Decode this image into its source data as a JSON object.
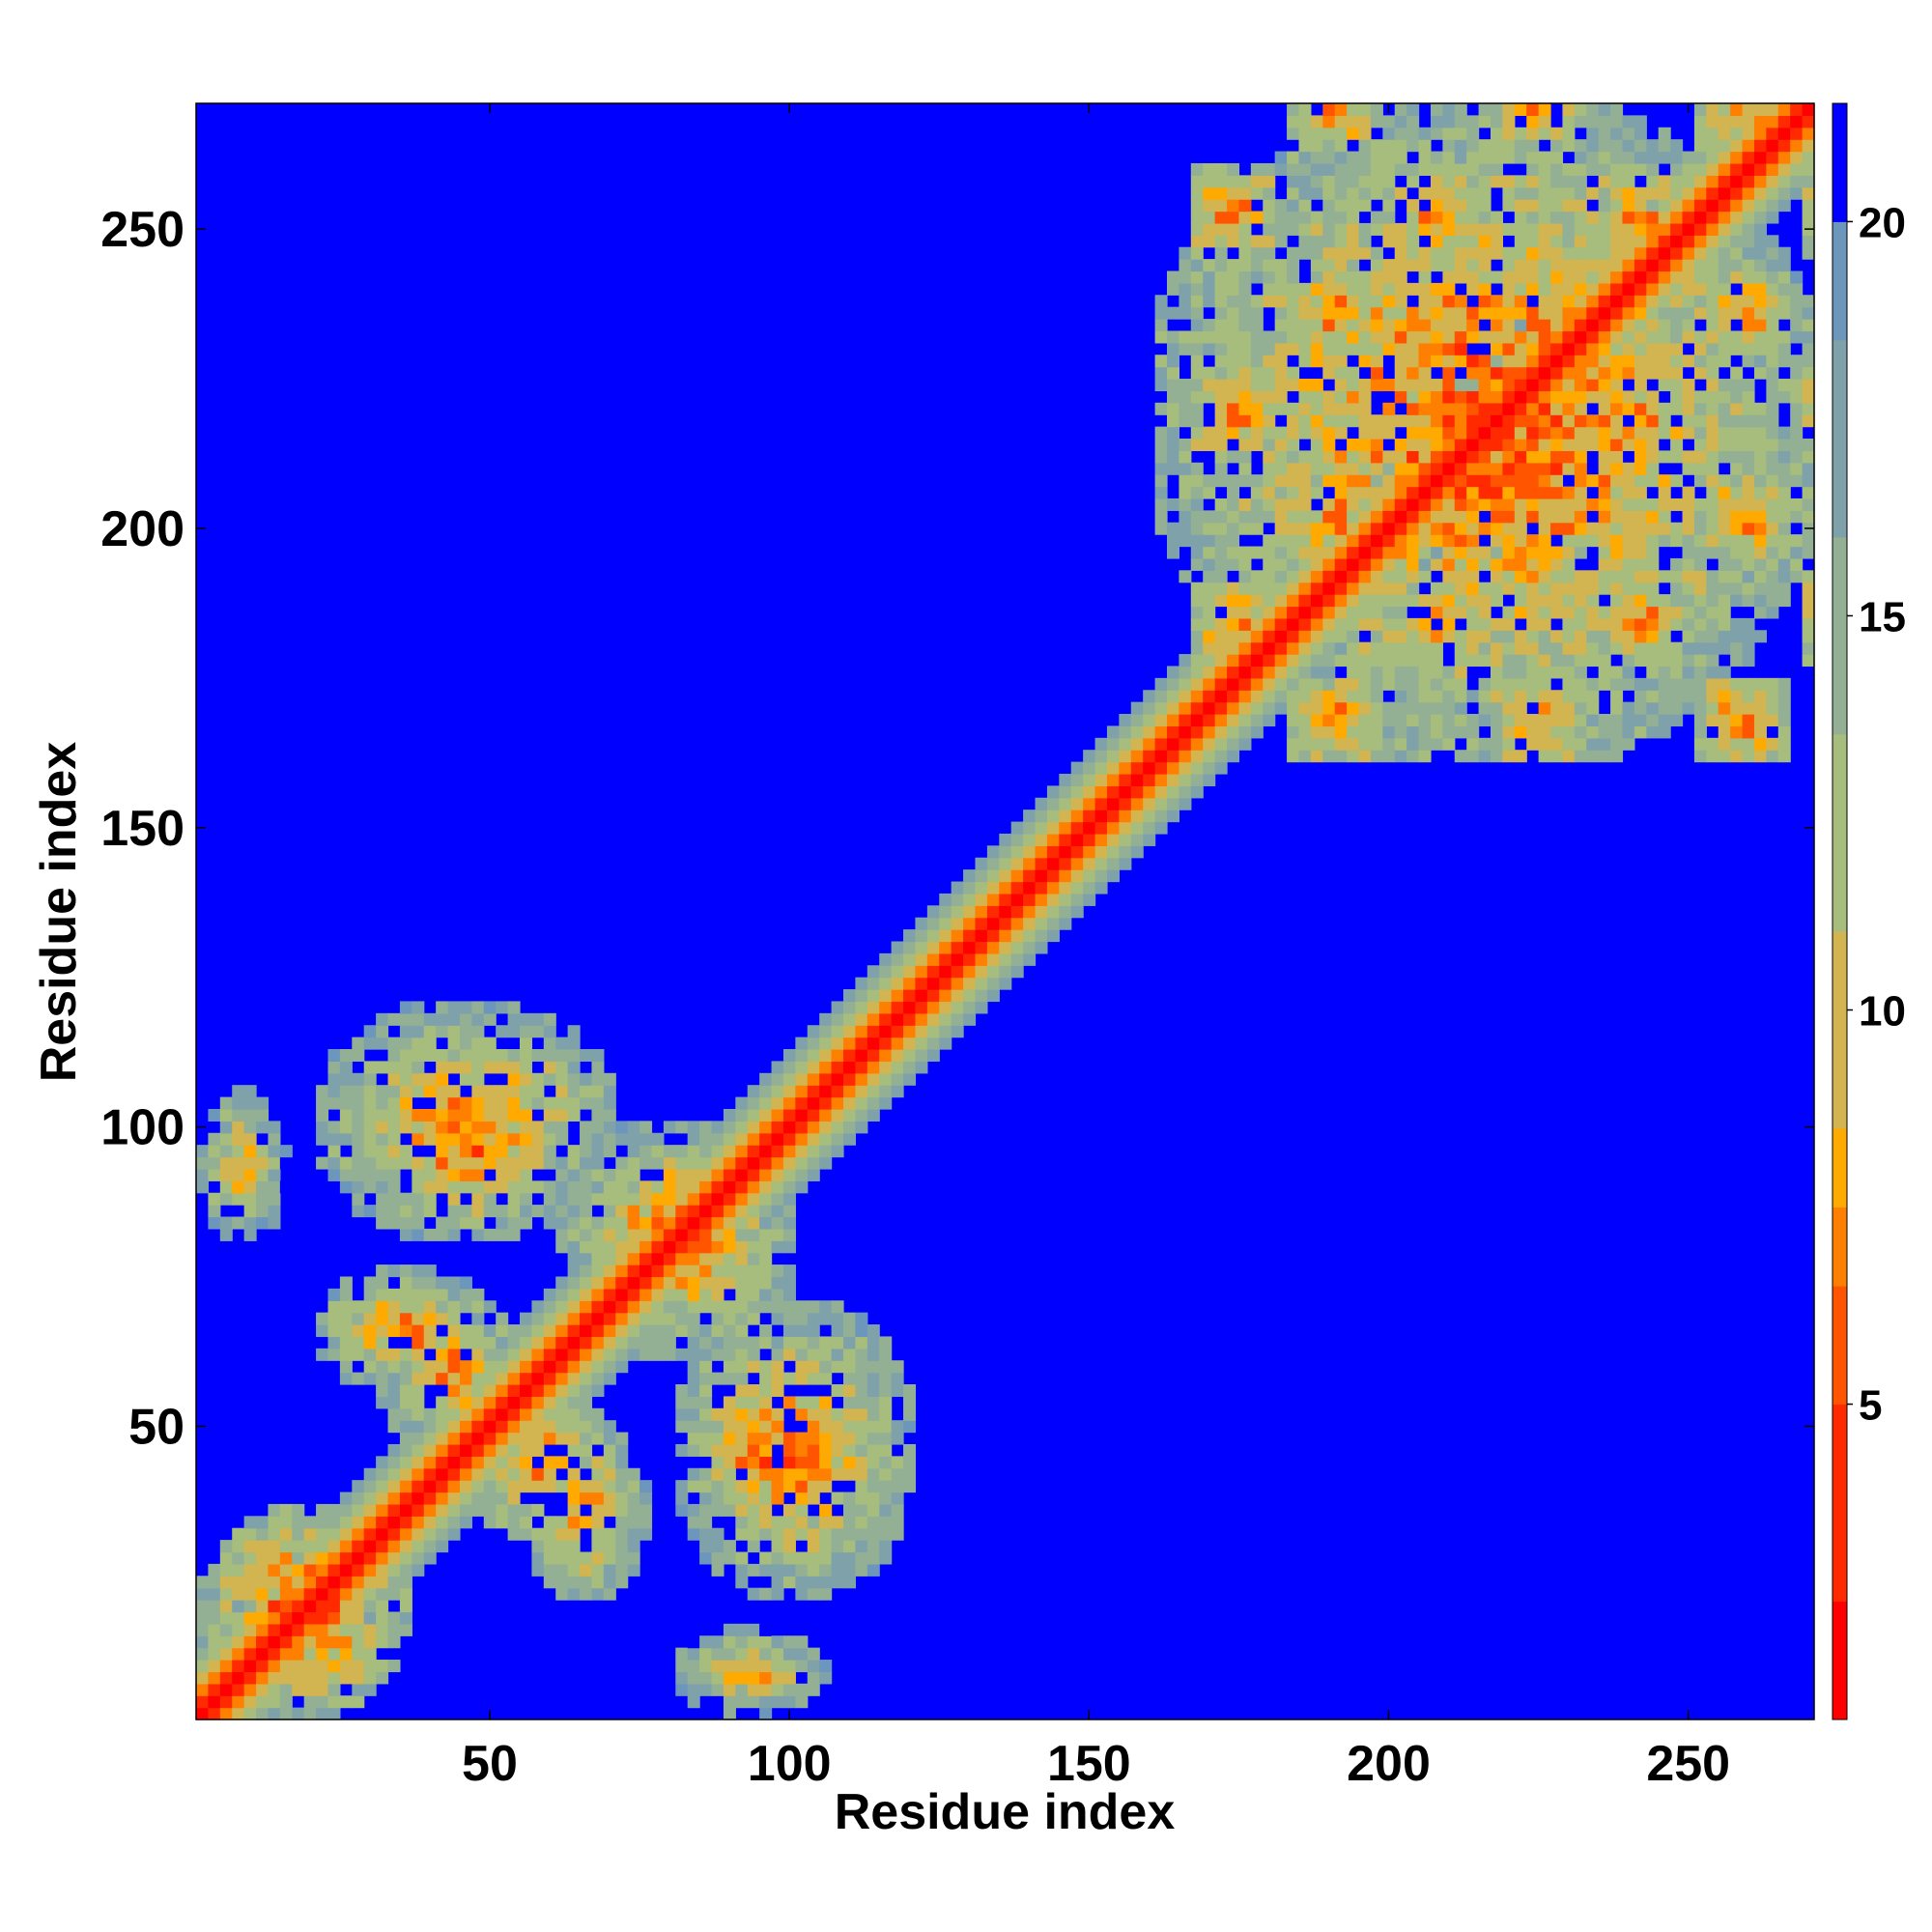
{
  "chart_data": {
    "type": "heatmap",
    "title": "",
    "xlabel": "Residue index",
    "ylabel": "Residue index",
    "xlim": [
      1,
      271
    ],
    "ylim": [
      1,
      271
    ],
    "x_ticks": [
      50,
      100,
      150,
      200,
      250
    ],
    "y_ticks": [
      50,
      100,
      150,
      200,
      250
    ],
    "colorbar": {
      "range": [
        1,
        21.5
      ],
      "ticks": [
        5,
        10,
        15,
        20
      ],
      "colors": [
        "#ff0000",
        "#ff2a00",
        "#ff5500",
        "#ff7f00",
        "#ffaa00",
        "#d2b450",
        "#a6bd7d",
        "#93b095",
        "#7fa2aa",
        "#6c96bb",
        "#0000ff"
      ],
      "levels": [
        1,
        2.5,
        5,
        6.5,
        7.5,
        8.5,
        11,
        13.5,
        16,
        18.5,
        20,
        21.5
      ]
    },
    "distance_matrix_summary": {
      "diagonal_value": 1.5,
      "background_value": 21.5,
      "contact_regions": [
        {
          "x_range": [
            1,
            35
          ],
          "y_range": [
            1,
            35
          ],
          "min_value": 4
        },
        {
          "x_range": [
            1,
            15
          ],
          "y_range": [
            80,
            105
          ],
          "min_value": 7
        },
        {
          "x_range": [
            20,
            70
          ],
          "y_range": [
            80,
            120
          ],
          "min_value": 6
        },
        {
          "x_range": [
            20,
            50
          ],
          "y_range": [
            55,
            75
          ],
          "min_value": 6
        },
        {
          "x_range": [
            45,
            70
          ],
          "y_range": [
            30,
            55
          ],
          "min_value": 6
        },
        {
          "x_range": [
            80,
            110
          ],
          "y_range": [
            25,
            65
          ],
          "min_value": 6
        },
        {
          "x_range": [
            80,
            105
          ],
          "y_range": [
            1,
            15
          ],
          "min_value": 7
        },
        {
          "x_range": [
            60,
            100
          ],
          "y_range": [
            65,
            100
          ],
          "min_value": 6
        },
        {
          "x_range": [
            165,
            270
          ],
          "y_range": [
            160,
            270
          ],
          "min_value": 5
        }
      ]
    }
  }
}
